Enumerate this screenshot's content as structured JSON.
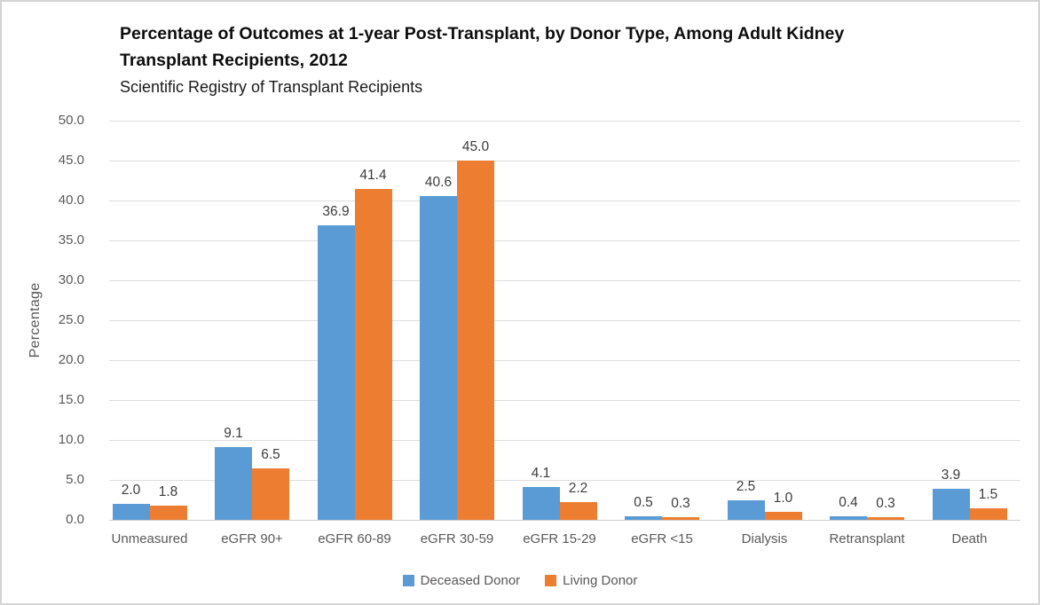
{
  "title": {
    "lines": [
      "Percentage of Outcomes at 1-year Post-Transplant, by Donor Type, Among Adult Kidney",
      "Transplant Recipients, 2012"
    ],
    "subtitle": "Scientific Registry of Transplant Recipients"
  },
  "chart_data": {
    "type": "bar",
    "title": "Percentage of Outcomes at 1-year Post-Transplant, by Donor Type, Among Adult Kidney Transplant Recipients, 2012",
    "subtitle": "Scientific Registry of Transplant Recipients",
    "categories": [
      "Unmeasured",
      "eGFR 90+",
      "eGFR 60-89",
      "eGFR 30-59",
      "eGFR 15-29",
      "eGFR <15",
      "Dialysis",
      "Retransplant",
      "Death"
    ],
    "series": [
      {
        "name": "Deceased Donor",
        "color": "#5B9BD5",
        "values": [
          2.0,
          9.1,
          36.9,
          40.6,
          4.1,
          0.5,
          2.5,
          0.4,
          3.9
        ]
      },
      {
        "name": "Living Donor",
        "color": "#ED7D31",
        "values": [
          1.8,
          6.5,
          41.4,
          45.0,
          2.2,
          0.3,
          1.0,
          0.3,
          1.5
        ]
      }
    ],
    "xlabel": "",
    "ylabel": "Percentage",
    "ylim": [
      0,
      50
    ],
    "ytick_step": 5,
    "ytick_labels": [
      "0.0",
      "5.0",
      "10.0",
      "15.0",
      "20.0",
      "25.0",
      "30.0",
      "35.0",
      "40.0",
      "45.0",
      "50.0"
    ],
    "grid": true,
    "data_labels": true,
    "legend_position": "bottom",
    "colors": {
      "grid": "#dedede",
      "axis_line": "#cfcfcf",
      "tick_text": "#595959",
      "data_label_text": "#3d3d3d",
      "frame_border": "#d4d4d4"
    }
  }
}
